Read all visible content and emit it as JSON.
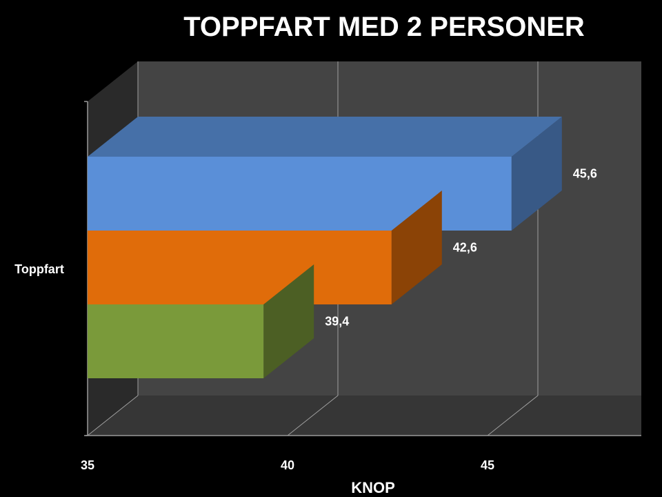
{
  "chart_data": {
    "type": "bar",
    "orientation": "horizontal",
    "three_d": true,
    "title": "TOPPFART MED 2 PERSONER",
    "xlabel": "KNOP",
    "ylabel": "",
    "categories": [
      "Toppfart"
    ],
    "series": [
      {
        "values": [
          45.6
        ],
        "data_label": "45,6",
        "color": "#5a8fd8"
      },
      {
        "values": [
          42.6
        ],
        "data_label": "42,6",
        "color": "#e06c0a"
      },
      {
        "values": [
          39.4
        ],
        "data_label": "39,4",
        "color": "#7a9a3a"
      }
    ],
    "xlim": [
      35,
      45
    ],
    "xticks": [
      35,
      40,
      45
    ],
    "xtick_labels": [
      "35",
      "40",
      "45"
    ],
    "grid": true,
    "legend": "none"
  },
  "colors": {
    "background": "#000000",
    "back_wall": "#444444",
    "floor": "#363636",
    "gridline": "#a0a0a0"
  }
}
